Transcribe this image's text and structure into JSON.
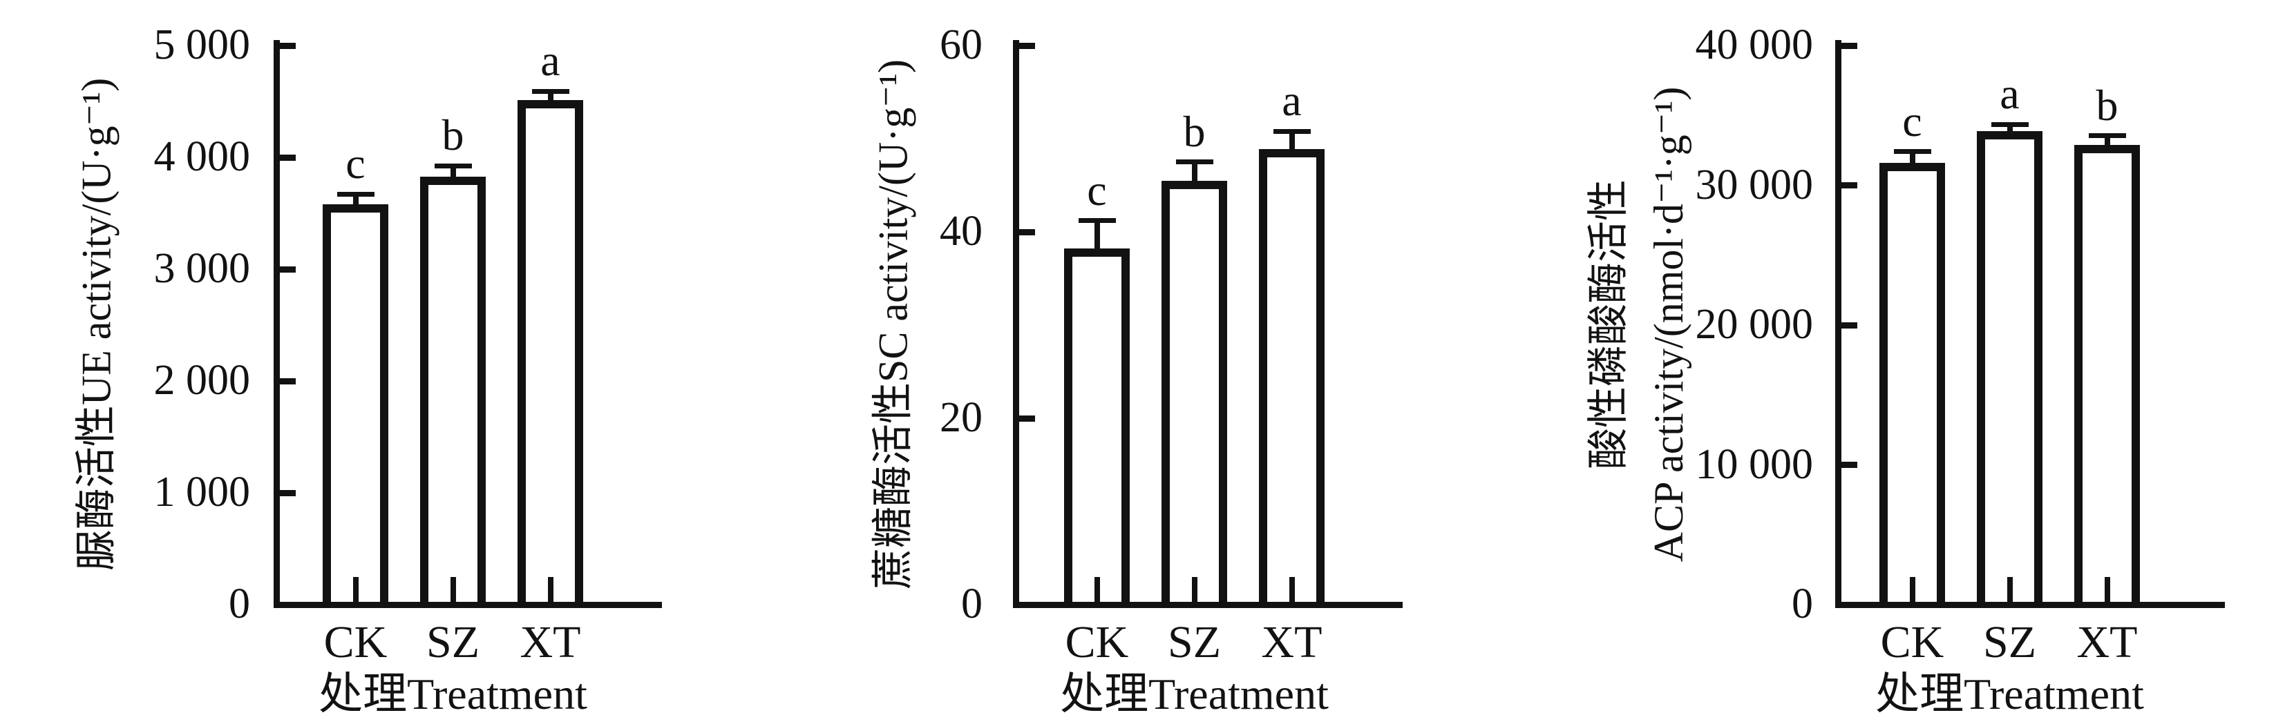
{
  "figure_background": "#ffffff",
  "ink_color": "#121212",
  "bar_fill": "#ffffff",
  "chart_data": [
    {
      "type": "bar",
      "ylabel_lines": [
        "脲酶活性UE activity/(U·g⁻¹)"
      ],
      "xlabel": "处理Treatment",
      "categories": [
        "CK",
        "SZ",
        "XT"
      ],
      "values": [
        3580,
        3830,
        4510
      ],
      "errors": [
        90,
        95,
        80
      ],
      "sig_letters": [
        "c",
        "b",
        "a"
      ],
      "ylim": [
        0,
        5000
      ],
      "yticks": [
        0,
        1000,
        2000,
        3000,
        4000,
        5000
      ],
      "ytick_labels": [
        "0",
        "1 000",
        "2 000",
        "3 000",
        "4 000",
        "5 000"
      ],
      "grid": false,
      "legend": null
    },
    {
      "type": "bar",
      "ylabel_lines": [
        "蔗糖酶活性SC activity/(U·g⁻¹)"
      ],
      "xlabel": "处理Treatment",
      "categories": [
        "CK",
        "SZ",
        "XT"
      ],
      "values": [
        38.2,
        45.5,
        48.9
      ],
      "errors": [
        3.0,
        2.0,
        1.9
      ],
      "sig_letters": [
        "c",
        "b",
        "a"
      ],
      "ylim": [
        0,
        60
      ],
      "yticks": [
        0,
        20,
        40,
        60
      ],
      "ytick_labels": [
        "0",
        "20",
        "40",
        "60"
      ],
      "grid": false,
      "legend": null
    },
    {
      "type": "bar",
      "ylabel_lines": [
        "酸性磷酸酶活性",
        "ACP activity/(nmol·d⁻¹·g⁻¹)"
      ],
      "xlabel": "处理Treatment",
      "categories": [
        "CK",
        "SZ",
        "XT"
      ],
      "values": [
        31600,
        33900,
        32900
      ],
      "errors": [
        800,
        450,
        650
      ],
      "sig_letters": [
        "c",
        "a",
        "b"
      ],
      "ylim": [
        0,
        40000
      ],
      "yticks": [
        0,
        10000,
        20000,
        30000,
        40000
      ],
      "ytick_labels": [
        "0",
        "10 000",
        "20 000",
        "30 000",
        "40 000"
      ],
      "grid": false,
      "legend": null
    }
  ]
}
